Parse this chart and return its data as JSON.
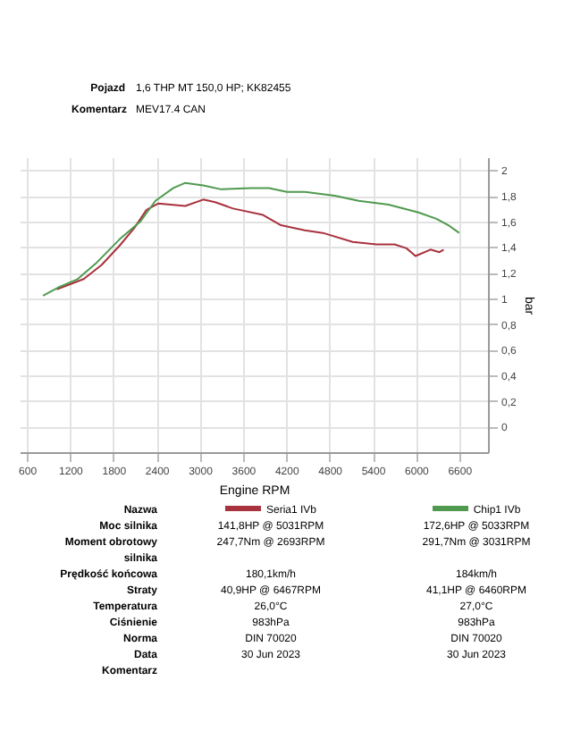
{
  "chart_data": {
    "type": "line",
    "xlabel": "Engine RPM",
    "ylabel": "bar",
    "xlim": [
      500,
      7000
    ],
    "xticks": [
      600,
      1200,
      1800,
      2400,
      3000,
      3600,
      4200,
      4800,
      5400,
      6000,
      6600
    ],
    "ylim": [
      -0.2,
      2.1
    ],
    "yticks": [
      0,
      {
        "value": 0.2,
        "label": "0,2"
      },
      {
        "value": 0.4,
        "label": "0,4"
      },
      {
        "value": 0.6,
        "label": "0,6"
      },
      {
        "value": 0.8,
        "label": "0,8"
      },
      1,
      {
        "value": 1.2,
        "label": "1,2"
      },
      {
        "value": 1.4,
        "label": "1,4"
      },
      {
        "value": 1.6,
        "label": "1,6"
      },
      {
        "value": 1.8,
        "label": "1,8"
      },
      2
    ],
    "grid": true,
    "legend": "bottom",
    "line_style": "solid",
    "series": [
      {
        "name": "Seria1 IVb",
        "color": "#a8323e",
        "x": [
          1015,
          1389,
          1637,
          1886,
          2094,
          2260,
          2426,
          2799,
          3048,
          3214,
          3463,
          3878,
          4127,
          4459,
          4708,
          5123,
          5455,
          5704,
          5870,
          5994,
          6202,
          6327,
          6385
        ],
        "values": [
          1.07,
          1.15,
          1.26,
          1.41,
          1.55,
          1.69,
          1.74,
          1.72,
          1.77,
          1.75,
          1.7,
          1.65,
          1.57,
          1.53,
          1.51,
          1.44,
          1.42,
          1.42,
          1.39,
          1.33,
          1.38,
          1.36,
          1.38
        ]
      },
      {
        "name": "Chip1 IVb",
        "color": "#4f9a4f",
        "x": [
          824,
          1056,
          1305,
          1554,
          1886,
          2177,
          2384,
          2633,
          2799,
          3048,
          3297,
          3712,
          3961,
          4210,
          4459,
          4873,
          5206,
          5621,
          6036,
          6285,
          6451,
          6600
        ],
        "values": [
          1.02,
          1.09,
          1.15,
          1.27,
          1.46,
          1.6,
          1.76,
          1.86,
          1.9,
          1.88,
          1.85,
          1.86,
          1.86,
          1.83,
          1.83,
          1.8,
          1.76,
          1.73,
          1.67,
          1.62,
          1.57,
          1.51
        ]
      }
    ],
    "annotations": [
      "Pojazd",
      "1,6 THP MT 150,0 HP; KK82455",
      "Komentarz",
      "MEV17.4 CAN",
      "Nazwa",
      "Moc silnika",
      "141,8HP @ 5031RPM",
      "172,6HP @ 5033RPM",
      "Moment obrotowy silnika",
      "247,7Nm @ 2693RPM",
      "291,7Nm @ 3031RPM",
      "Prędkość końcowa",
      "180,1km/h",
      "184km/h",
      "Straty",
      "40,9HP @ 6467RPM",
      "41,1HP @ 6460RPM",
      "Temperatura",
      "26,0°C",
      "27,0°C",
      "Ciśnienie",
      "983hPa",
      "983hPa",
      "Norma",
      "DIN 70020",
      "DIN 70020",
      "Data",
      "30 Jun 2023",
      "30 Jun 2023",
      "Komentarz"
    ]
  }
}
